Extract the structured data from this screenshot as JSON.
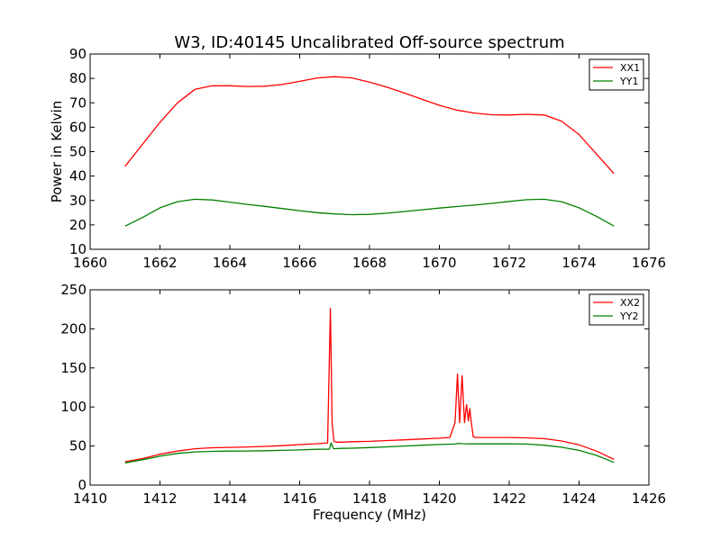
{
  "figure": {
    "title": "W3, ID:40145 Uncalibrated Off-source spectrum"
  },
  "chart_data": [
    {
      "type": "line",
      "title": "W3, ID:40145 Uncalibrated Off-source spectrum",
      "xlabel": "",
      "ylabel": "Power in Kelvin",
      "xlim": [
        1660,
        1676
      ],
      "ylim": [
        10,
        90
      ],
      "xticks": [
        1660,
        1662,
        1664,
        1666,
        1668,
        1670,
        1672,
        1674,
        1676
      ],
      "yticks": [
        10,
        20,
        30,
        40,
        50,
        60,
        70,
        80,
        90
      ],
      "grid": false,
      "legend_position": "top-right",
      "series": [
        {
          "name": "XX1",
          "color": "#ff0000",
          "x": [
            1661.0,
            1661.5,
            1662.0,
            1662.5,
            1663.0,
            1663.5,
            1664.0,
            1664.5,
            1665.0,
            1665.5,
            1666.0,
            1666.5,
            1667.0,
            1667.5,
            1668.0,
            1668.5,
            1669.0,
            1669.5,
            1670.0,
            1670.5,
            1671.0,
            1671.5,
            1672.0,
            1672.5,
            1673.0,
            1673.5,
            1674.0,
            1674.5,
            1675.0
          ],
          "y": [
            44,
            53,
            62,
            70,
            75.5,
            77,
            77,
            76.7,
            76.8,
            77.5,
            78.8,
            80.2,
            80.7,
            80.2,
            78.5,
            76.4,
            74,
            71.5,
            69,
            67,
            65.8,
            65.1,
            65,
            65.3,
            65,
            62.5,
            57,
            49,
            41
          ]
        },
        {
          "name": "YY1",
          "color": "#008000",
          "x": [
            1661.0,
            1661.5,
            1662.0,
            1662.5,
            1663.0,
            1663.5,
            1664.0,
            1664.5,
            1665.0,
            1665.5,
            1666.0,
            1666.5,
            1667.0,
            1667.5,
            1668.0,
            1668.5,
            1669.0,
            1669.5,
            1670.0,
            1670.5,
            1671.0,
            1671.5,
            1672.0,
            1672.5,
            1673.0,
            1673.5,
            1674.0,
            1674.5,
            1675.0
          ],
          "y": [
            19.5,
            23,
            27,
            29.5,
            30.5,
            30.2,
            29.3,
            28.4,
            27.6,
            26.7,
            25.8,
            25,
            24.5,
            24.2,
            24.3,
            24.8,
            25.5,
            26.2,
            26.9,
            27.5,
            28.1,
            28.8,
            29.6,
            30.3,
            30.5,
            29.5,
            27,
            23.5,
            19.5
          ]
        }
      ]
    },
    {
      "type": "line",
      "title": "",
      "xlabel": "Frequency (MHz)",
      "ylabel": "",
      "xlim": [
        1410,
        1426
      ],
      "ylim": [
        0,
        250
      ],
      "xticks": [
        1410,
        1412,
        1414,
        1416,
        1418,
        1420,
        1422,
        1424,
        1426
      ],
      "yticks": [
        0,
        50,
        100,
        150,
        200,
        250
      ],
      "grid": false,
      "legend_position": "top-right",
      "series": [
        {
          "name": "XX2",
          "color": "#ff0000",
          "x": [
            1411.0,
            1411.5,
            1412.0,
            1412.5,
            1413.0,
            1413.5,
            1414.0,
            1414.5,
            1415.0,
            1415.5,
            1416.0,
            1416.5,
            1416.8,
            1416.88,
            1416.93,
            1416.98,
            1417.05,
            1417.2,
            1417.5,
            1418.0,
            1418.5,
            1419.0,
            1419.5,
            1420.0,
            1420.3,
            1420.45,
            1420.52,
            1420.58,
            1420.65,
            1420.72,
            1420.78,
            1420.83,
            1420.87,
            1420.92,
            1420.97,
            1421.05,
            1421.2,
            1421.5,
            1422.0,
            1422.5,
            1423.0,
            1423.5,
            1424.0,
            1424.5,
            1425.0
          ],
          "y": [
            30,
            34,
            39.5,
            43.5,
            46.5,
            47.8,
            48.3,
            48.8,
            49.5,
            50.5,
            51.8,
            53,
            54,
            226,
            80,
            56,
            55,
            55,
            55.5,
            56,
            57,
            58,
            59,
            60,
            61,
            80,
            142,
            80,
            140,
            80,
            103,
            82,
            98,
            78,
            62,
            61,
            61,
            61,
            61,
            60.5,
            59.5,
            56.5,
            51.5,
            43.5,
            33
          ]
        },
        {
          "name": "YY2",
          "color": "#008000",
          "x": [
            1411.0,
            1411.5,
            1412.0,
            1412.5,
            1413.0,
            1413.5,
            1414.0,
            1414.5,
            1415.0,
            1415.5,
            1416.0,
            1416.5,
            1416.85,
            1416.9,
            1416.97,
            1417.2,
            1417.5,
            1418.0,
            1418.5,
            1419.0,
            1419.5,
            1420.0,
            1420.45,
            1420.55,
            1420.65,
            1421.0,
            1421.5,
            1422.0,
            1422.5,
            1423.0,
            1423.5,
            1424.0,
            1424.5,
            1425.0
          ],
          "y": [
            28.5,
            32.5,
            37,
            40.5,
            42.5,
            43.2,
            43.5,
            43.7,
            44,
            44.5,
            45,
            45.8,
            46,
            54,
            46.5,
            47,
            47.2,
            48,
            49,
            50,
            51,
            52,
            52.5,
            53.5,
            53,
            52.8,
            52.8,
            52.8,
            52.5,
            51,
            48.5,
            44.5,
            38,
            29
          ]
        }
      ]
    }
  ]
}
